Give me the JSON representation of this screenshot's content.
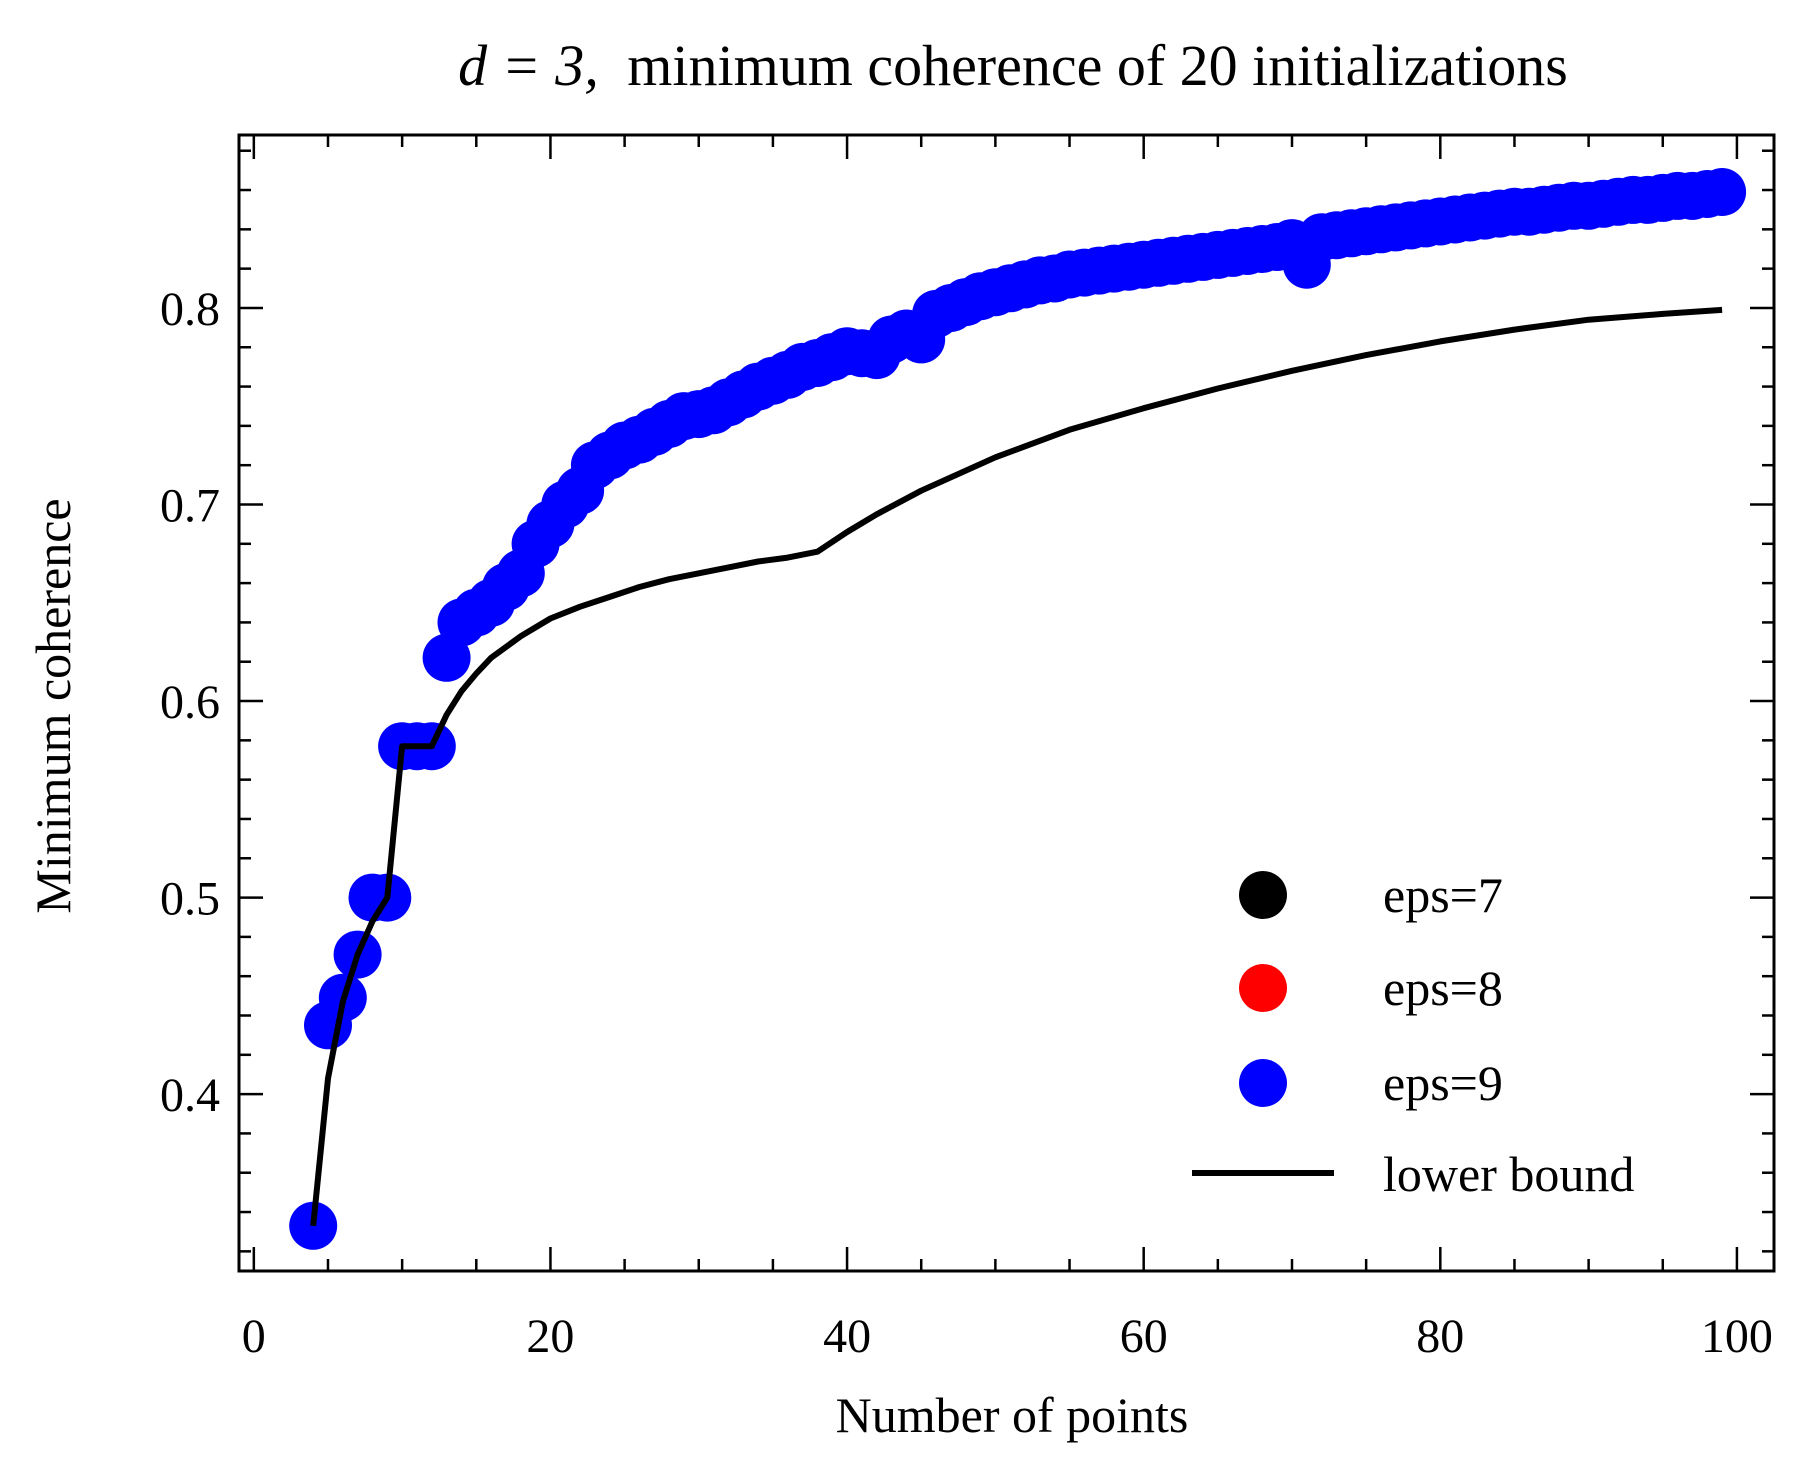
{
  "chart_data": {
    "type": "scatter",
    "title_math": "d = 3,",
    "title_text": "minimum coherence of 20 initializations",
    "xlabel": "Number of points",
    "ylabel": "Minimum coherence",
    "xlim": [
      -1,
      102.5
    ],
    "ylim": [
      0.31,
      0.888
    ],
    "xticks": [
      0,
      20,
      40,
      60,
      80,
      100
    ],
    "yticks": [
      0.4,
      0.5,
      0.6,
      0.7,
      0.8
    ],
    "xtick_labels": [
      "0",
      "20",
      "40",
      "60",
      "80",
      "100"
    ],
    "ytick_labels": [
      "0.4",
      "0.5",
      "0.6",
      "0.7",
      "0.8"
    ],
    "grid": false,
    "legend_position": "lower right",
    "series": [
      {
        "name": "eps=7",
        "kind": "scatter",
        "color": "#000000",
        "same_as": "eps=9"
      },
      {
        "name": "eps=8",
        "kind": "scatter",
        "color": "#ff0000",
        "same_as": "eps=9"
      },
      {
        "name": "eps=9",
        "kind": "scatter",
        "color": "#0000ff",
        "x": [
          4,
          5,
          6,
          7,
          8,
          9,
          10,
          11,
          12,
          13,
          14,
          15,
          16,
          17,
          18,
          19,
          20,
          21,
          22,
          23,
          24,
          25,
          26,
          27,
          28,
          29,
          30,
          31,
          32,
          33,
          34,
          35,
          36,
          37,
          38,
          39,
          40,
          41,
          42,
          43,
          44,
          45,
          46,
          47,
          48,
          49,
          50,
          51,
          52,
          53,
          54,
          55,
          56,
          57,
          58,
          59,
          60,
          61,
          62,
          63,
          64,
          65,
          66,
          67,
          68,
          69,
          70,
          71,
          72,
          73,
          74,
          75,
          76,
          77,
          78,
          79,
          80,
          81,
          82,
          83,
          84,
          85,
          86,
          87,
          88,
          89,
          90,
          91,
          92,
          93,
          94,
          95,
          96,
          97,
          98,
          99
        ],
        "y": [
          0.333,
          0.435,
          0.449,
          0.471,
          0.5,
          0.5,
          0.577,
          0.577,
          0.577,
          0.622,
          0.64,
          0.645,
          0.65,
          0.658,
          0.665,
          0.68,
          0.69,
          0.7,
          0.707,
          0.72,
          0.725,
          0.73,
          0.733,
          0.737,
          0.741,
          0.745,
          0.746,
          0.748,
          0.752,
          0.756,
          0.76,
          0.763,
          0.766,
          0.77,
          0.772,
          0.775,
          0.778,
          0.777,
          0.776,
          0.784,
          0.787,
          0.784,
          0.797,
          0.8,
          0.803,
          0.806,
          0.808,
          0.81,
          0.812,
          0.814,
          0.815,
          0.817,
          0.818,
          0.819,
          0.82,
          0.821,
          0.822,
          0.823,
          0.824,
          0.825,
          0.826,
          0.827,
          0.828,
          0.829,
          0.83,
          0.831,
          0.833,
          0.822,
          0.836,
          0.837,
          0.838,
          0.839,
          0.84,
          0.841,
          0.842,
          0.843,
          0.844,
          0.845,
          0.846,
          0.847,
          0.848,
          0.849,
          0.849,
          0.85,
          0.851,
          0.852,
          0.852,
          0.853,
          0.854,
          0.855,
          0.855,
          0.856,
          0.857,
          0.857,
          0.858,
          0.859
        ]
      },
      {
        "name": "lower bound",
        "kind": "line",
        "color": "#000000",
        "x": [
          4,
          5,
          6,
          7,
          8,
          9,
          10,
          11,
          12,
          13,
          14,
          15,
          16,
          18,
          20,
          22,
          24,
          26,
          28,
          30,
          32,
          34,
          36,
          38,
          40,
          42,
          45,
          50,
          55,
          60,
          65,
          70,
          75,
          80,
          85,
          90,
          95,
          99
        ],
        "y": [
          0.333,
          0.408,
          0.447,
          0.471,
          0.488,
          0.5,
          0.577,
          0.577,
          0.577,
          0.593,
          0.605,
          0.614,
          0.622,
          0.633,
          0.642,
          0.648,
          0.653,
          0.658,
          0.662,
          0.665,
          0.668,
          0.671,
          0.673,
          0.676,
          0.686,
          0.695,
          0.707,
          0.724,
          0.738,
          0.749,
          0.759,
          0.768,
          0.776,
          0.783,
          0.789,
          0.794,
          0.797,
          0.799
        ]
      }
    ]
  }
}
